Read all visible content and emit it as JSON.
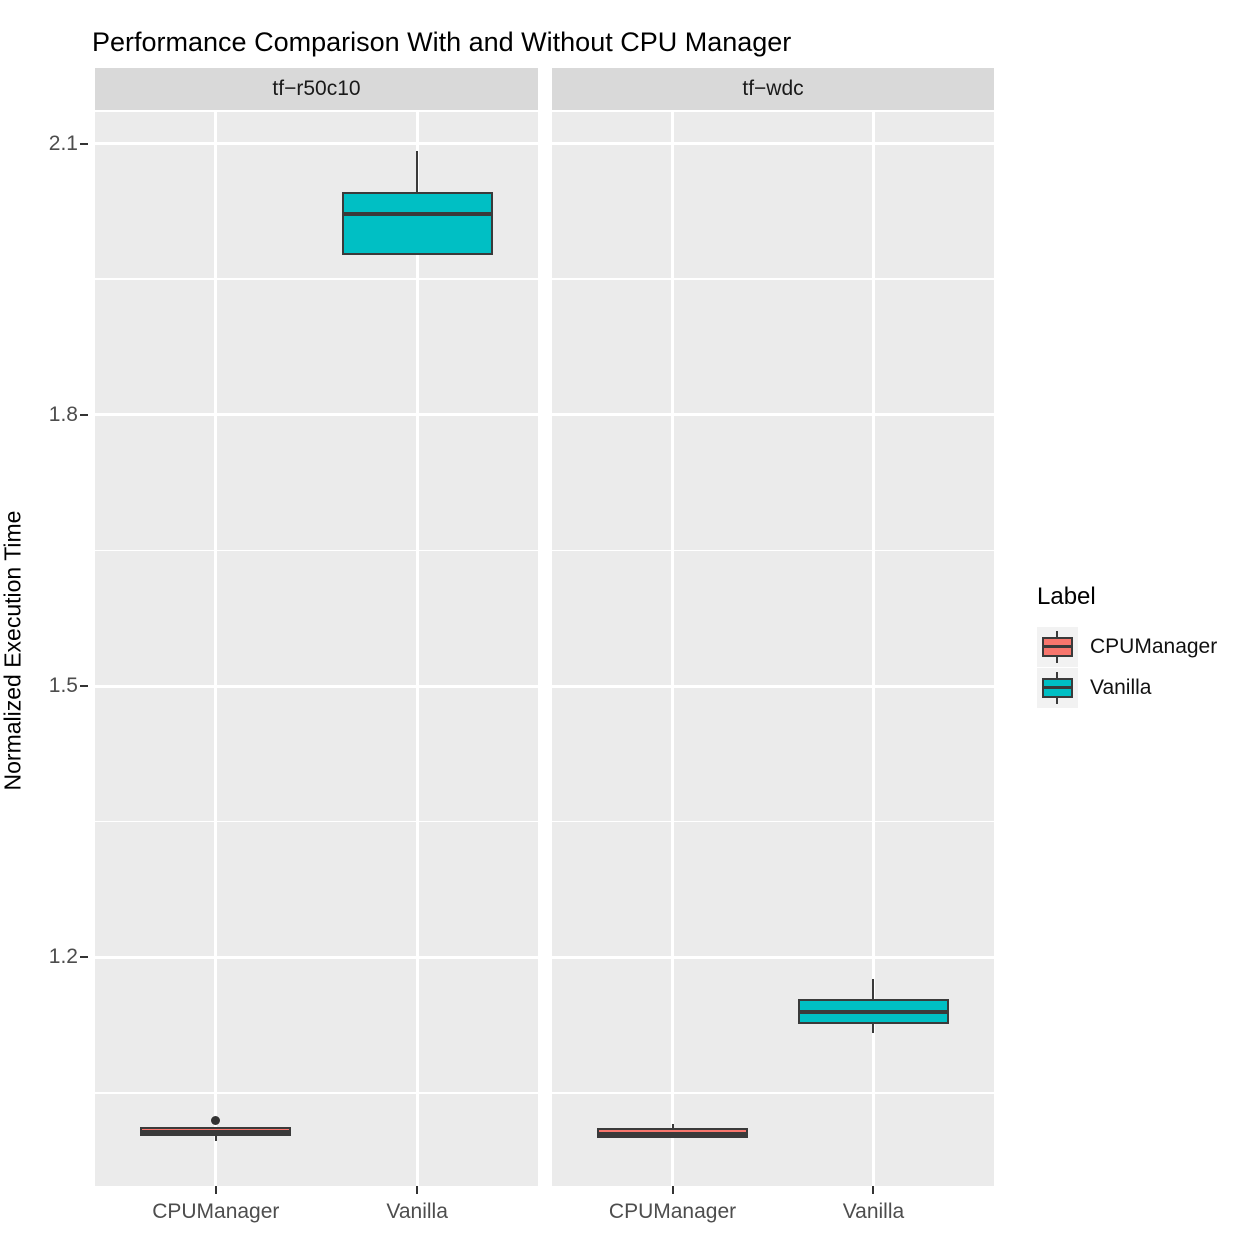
{
  "title": "Performance Comparison With and Without CPU Manager",
  "chart_data": {
    "type": "boxplot",
    "title": "Performance Comparison With and Without CPU Manager",
    "xlabel": "",
    "ylabel": "Normalized Execution Time",
    "x_categories": [
      "CPUManager",
      "Vanilla"
    ],
    "y_ticks_major": [
      2.1,
      1.8,
      1.5,
      1.2
    ],
    "y_tick_labels": [
      "2.1",
      "1.8",
      "1.5",
      "1.2"
    ],
    "y_ticks_minor": [
      1.95,
      1.65,
      1.35,
      1.05
    ],
    "y_range": [
      0.947,
      2.135
    ],
    "grid": "on",
    "facets": [
      {
        "label": "tf−r50c10",
        "boxes": [
          {
            "category": "CPUManager",
            "min": 0.997,
            "q1": 1.002,
            "median": 1.007,
            "q3": 1.012,
            "max": 1.012,
            "outliers": [
              1.02
            ]
          },
          {
            "category": "Vanilla",
            "min": 1.977,
            "q1": 1.977,
            "median": 2.022,
            "q3": 2.047,
            "max": 2.092,
            "outliers": []
          }
        ]
      },
      {
        "label": "tf−wdc",
        "boxes": [
          {
            "category": "CPUManager",
            "min": 1.0,
            "q1": 1.0,
            "median": 1.005,
            "q3": 1.011,
            "max": 1.016,
            "outliers": []
          },
          {
            "category": "Vanilla",
            "min": 1.116,
            "q1": 1.126,
            "median": 1.139,
            "q3": 1.154,
            "max": 1.176,
            "outliers": []
          }
        ]
      }
    ],
    "legend": {
      "title": "Label",
      "position": "right",
      "entries": [
        {
          "label": "CPUManager",
          "color": "#F8766D"
        },
        {
          "label": "Vanilla",
          "color": "#00BFC4"
        }
      ]
    },
    "colors": {
      "CPUManager": "#F8766D",
      "Vanilla": "#00BFC4",
      "box_border": "#3A3A3A",
      "panel_bg": "#EBEBEB",
      "strip_bg": "#D9D9D9",
      "gridline": "#FFFFFF",
      "axis_text": "#4D4D4D",
      "title_text": "#000000"
    }
  }
}
